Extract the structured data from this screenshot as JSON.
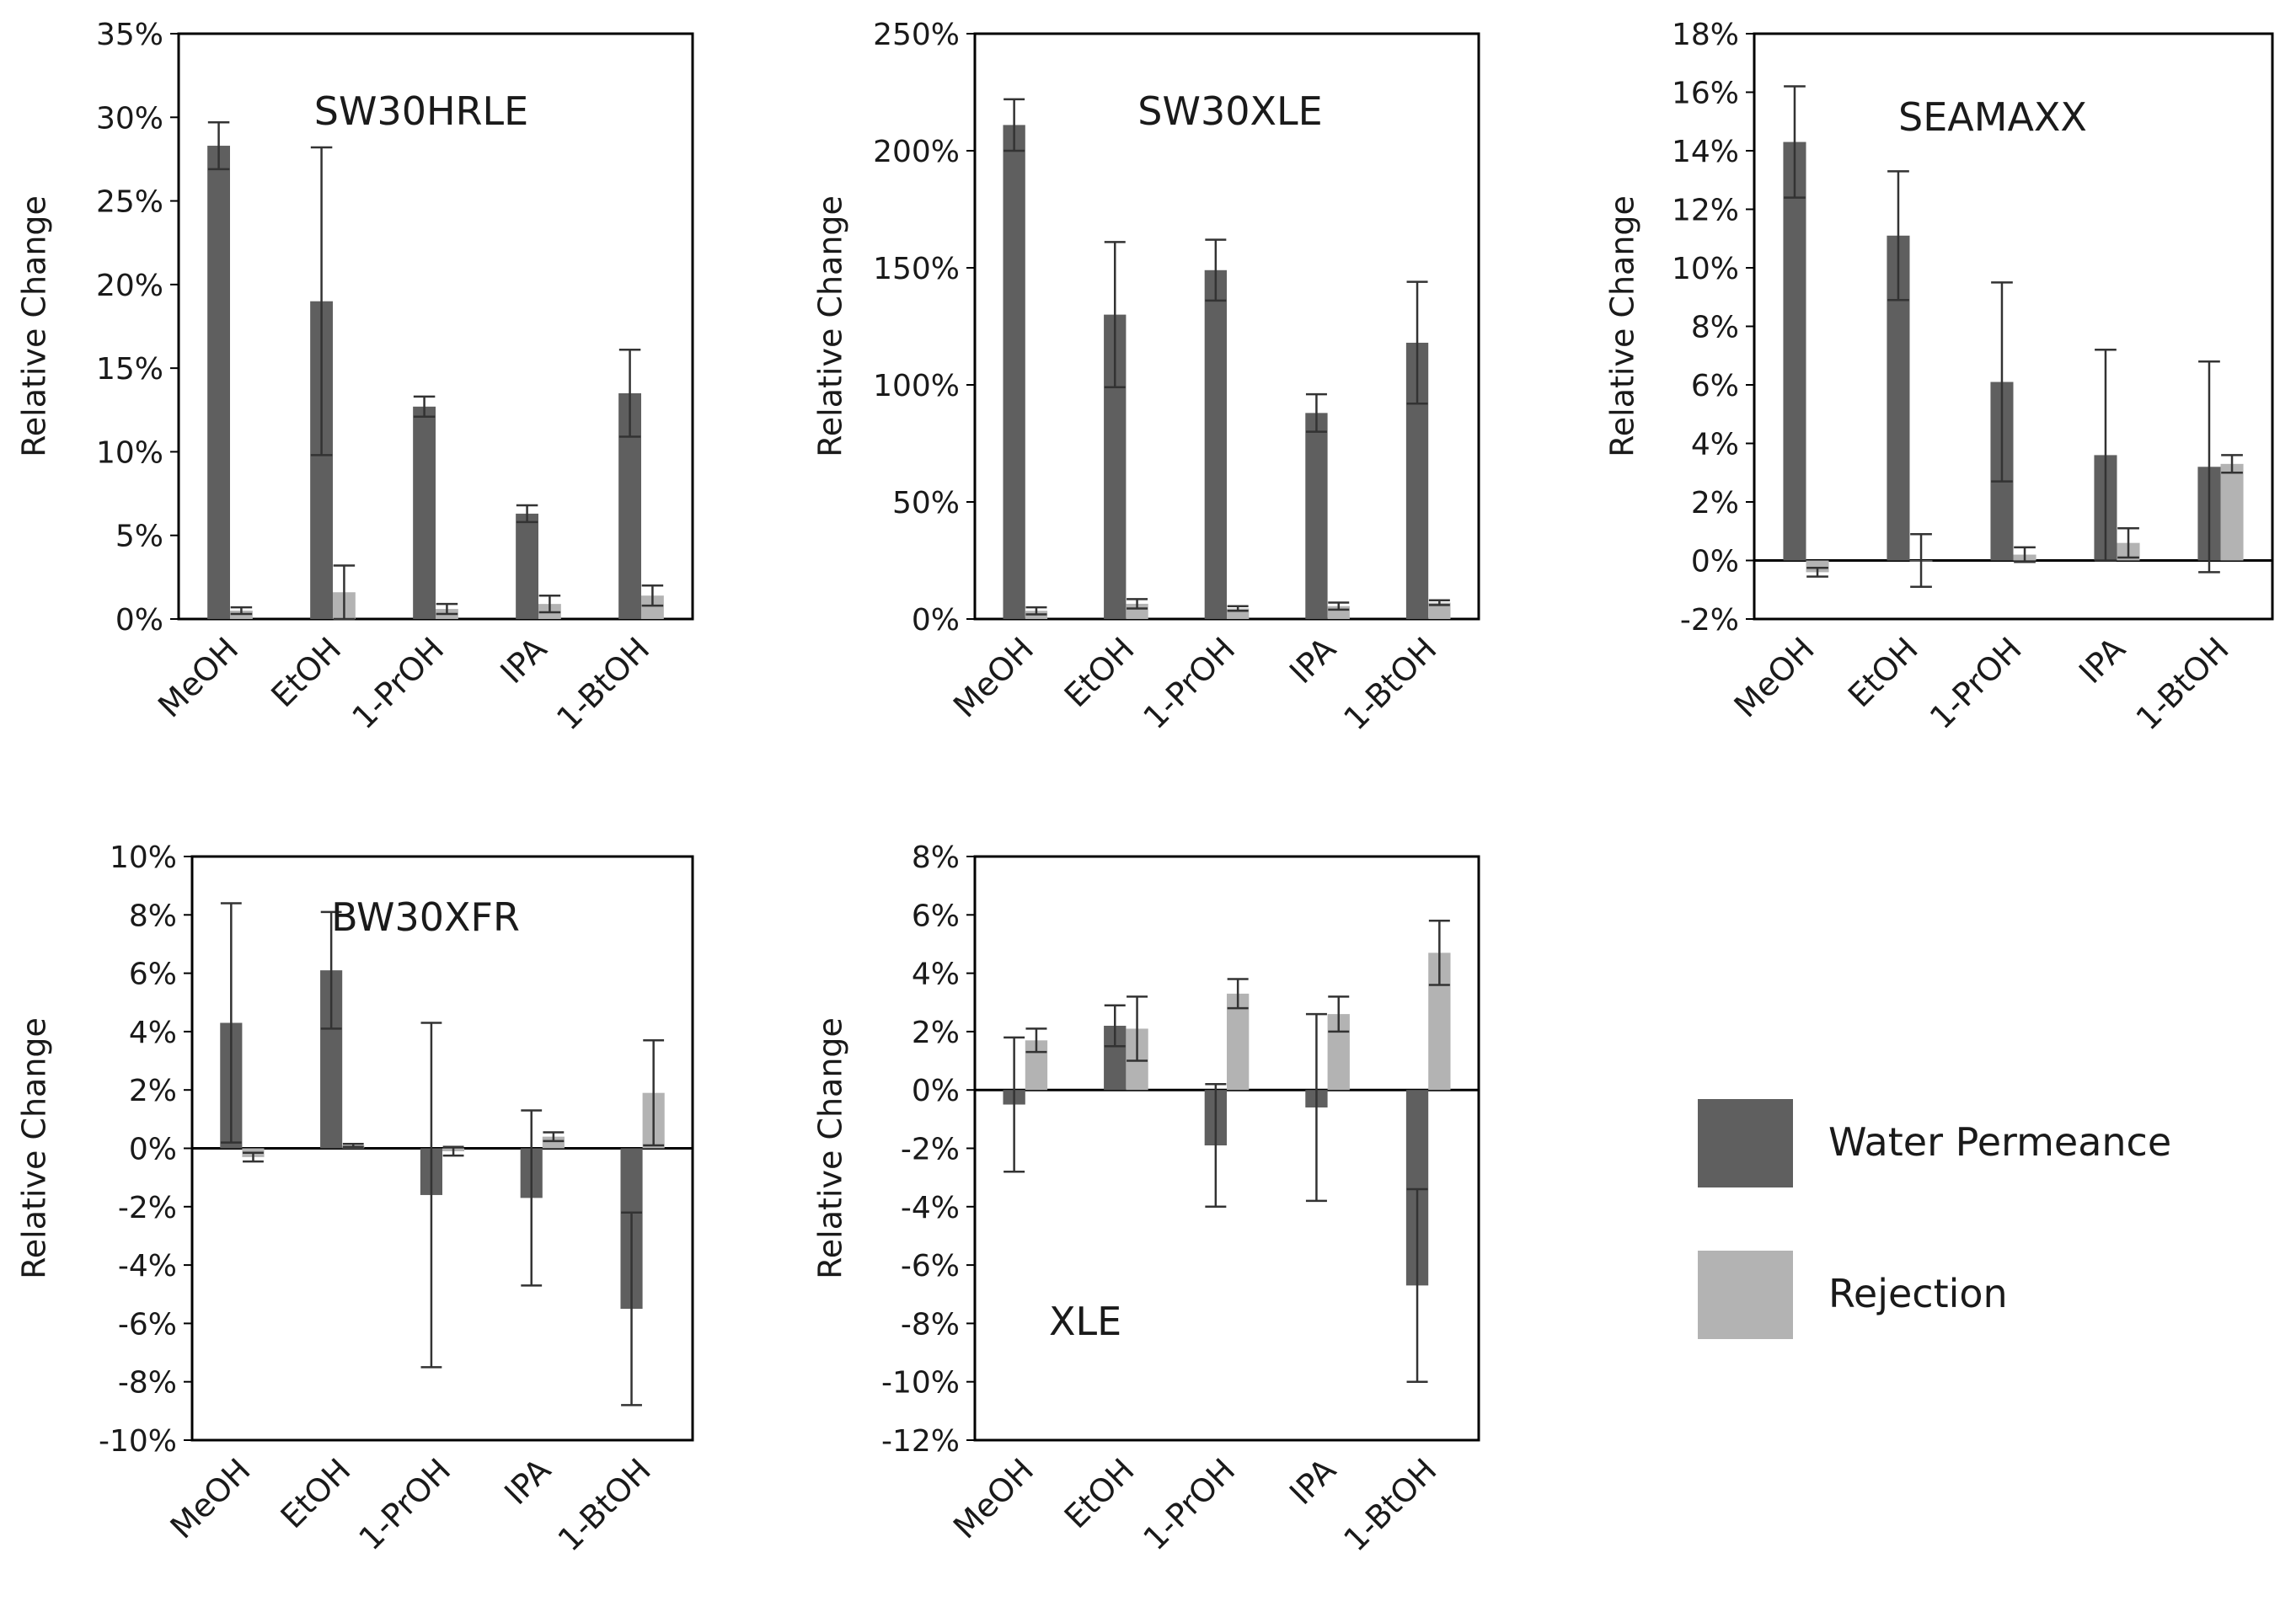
{
  "colors": {
    "water_permeance": "#5f5f5f",
    "rejection": "#b3b3b3",
    "axis": "#000000",
    "errorbar": "#333333"
  },
  "legend": {
    "items": [
      {
        "label": "Water Permeance",
        "color": "#5f5f5f"
      },
      {
        "label": "Rejection",
        "color": "#b3b3b3"
      }
    ]
  },
  "chart_data": [
    {
      "type": "bar",
      "title": "SW30HRLE",
      "ylabel": "Relative Change",
      "ylim": [
        0,
        35
      ],
      "yticks": [
        0,
        5,
        10,
        15,
        20,
        25,
        30,
        35
      ],
      "ytick_labels": [
        "0%",
        "5%",
        "10%",
        "15%",
        "20%",
        "25%",
        "30%",
        "35%"
      ],
      "categories": [
        "MeOH",
        "EtOH",
        "1-PrOH",
        "IPA",
        "1-BtOH"
      ],
      "series": [
        {
          "name": "Water Permeance",
          "values": [
            28.3,
            19.0,
            12.7,
            6.3,
            13.5
          ],
          "errors": [
            1.4,
            9.2,
            0.6,
            0.5,
            2.6
          ]
        },
        {
          "name": "Rejection",
          "values": [
            0.5,
            1.6,
            0.6,
            0.9,
            1.4
          ],
          "errors": [
            0.2,
            1.6,
            0.3,
            0.5,
            0.6
          ]
        }
      ]
    },
    {
      "type": "bar",
      "title": "SW30XLE",
      "ylabel": "Relative Change",
      "ylim": [
        0,
        250
      ],
      "yticks": [
        0,
        50,
        100,
        150,
        200,
        250
      ],
      "ytick_labels": [
        "0%",
        "50%",
        "100%",
        "150%",
        "200%",
        "250%"
      ],
      "categories": [
        "MeOH",
        "EtOH",
        "1-PrOH",
        "IPA",
        "1-BtOH"
      ],
      "series": [
        {
          "name": "Water Permeance",
          "values": [
            211,
            130,
            149,
            88,
            118
          ],
          "errors": [
            11,
            31,
            13,
            8,
            26
          ]
        },
        {
          "name": "Rejection",
          "values": [
            3.5,
            6.5,
            4.5,
            5.5,
            7.0
          ],
          "errors": [
            1.5,
            2.0,
            1.0,
            1.5,
            1.0
          ]
        }
      ]
    },
    {
      "type": "bar",
      "title": "SEAMAXX",
      "ylabel": "Relative Change",
      "ylim": [
        -2,
        18
      ],
      "yticks": [
        -2,
        0,
        2,
        4,
        6,
        8,
        10,
        12,
        14,
        16,
        18
      ],
      "ytick_labels": [
        "-2%",
        "0%",
        "2%",
        "4%",
        "6%",
        "8%",
        "10%",
        "12%",
        "14%",
        "16%",
        "18%"
      ],
      "categories": [
        "MeOH",
        "EtOH",
        "1-PrOH",
        "IPA",
        "1-BtOH"
      ],
      "series": [
        {
          "name": "Water Permeance",
          "values": [
            14.3,
            11.1,
            6.1,
            3.6,
            3.2
          ],
          "errors": [
            1.9,
            2.2,
            3.4,
            3.6,
            3.6
          ]
        },
        {
          "name": "Rejection",
          "values": [
            -0.4,
            0.0,
            0.2,
            0.6,
            3.3
          ],
          "errors": [
            0.15,
            0.9,
            0.25,
            0.5,
            0.3
          ]
        }
      ]
    },
    {
      "type": "bar",
      "title": "BW30XFR",
      "ylabel": "Relative Change",
      "ylim": [
        -10,
        10
      ],
      "yticks": [
        -10,
        -8,
        -6,
        -4,
        -2,
        0,
        2,
        4,
        6,
        8,
        10
      ],
      "ytick_labels": [
        "-10%",
        "-8%",
        "-6%",
        "-4%",
        "-2%",
        "0%",
        "2%",
        "4%",
        "6%",
        "8%",
        "10%"
      ],
      "categories": [
        "MeOH",
        "EtOH",
        "1-PrOH",
        "IPA",
        "1-BtOH"
      ],
      "series": [
        {
          "name": "Water Permeance",
          "values": [
            4.3,
            6.1,
            -1.6,
            -1.7,
            -5.5
          ],
          "errors": [
            4.1,
            2.0,
            5.9,
            3.0,
            3.3
          ]
        },
        {
          "name": "Rejection",
          "values": [
            -0.3,
            0.1,
            -0.1,
            0.4,
            1.9
          ],
          "errors": [
            0.15,
            0.05,
            0.15,
            0.15,
            1.8
          ]
        }
      ]
    },
    {
      "type": "bar",
      "title": "XLE",
      "ylabel": "Relative Change",
      "ylim": [
        -12,
        8
      ],
      "yticks": [
        -12,
        -10,
        -8,
        -6,
        -4,
        -2,
        0,
        2,
        4,
        6,
        8
      ],
      "ytick_labels": [
        "-12%",
        "-10%",
        "-8%",
        "-6%",
        "-4%",
        "-2%",
        "0%",
        "2%",
        "4%",
        "6%",
        "8%"
      ],
      "categories": [
        "MeOH",
        "EtOH",
        "1-PrOH",
        "IPA",
        "1-BtOH"
      ],
      "series": [
        {
          "name": "Water Permeance",
          "values": [
            -0.5,
            2.2,
            -1.9,
            -0.6,
            -6.7
          ],
          "errors": [
            2.3,
            0.7,
            2.1,
            3.2,
            3.3
          ]
        },
        {
          "name": "Rejection",
          "values": [
            1.7,
            2.1,
            3.3,
            2.6,
            4.7
          ],
          "errors": [
            0.4,
            1.1,
            0.5,
            0.6,
            1.1
          ]
        }
      ]
    }
  ]
}
